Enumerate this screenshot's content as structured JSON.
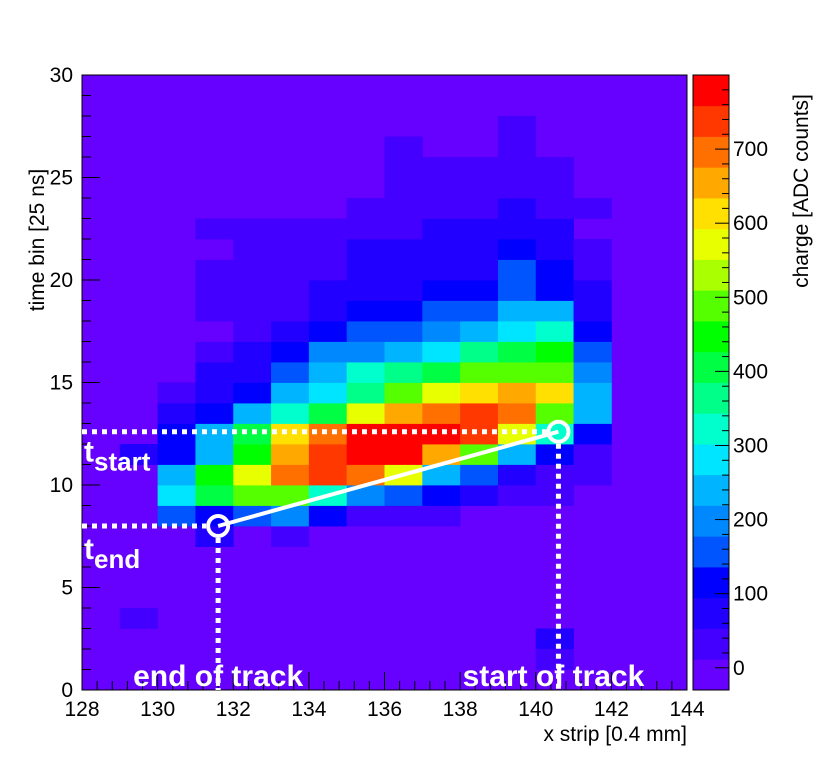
{
  "chart_data": {
    "type": "heatmap",
    "xlabel": "x strip [0.4 mm]",
    "ylabel": "time bin [25 ns]",
    "colorbar_label": "charge [ADC counts]",
    "x_range": [
      128,
      144
    ],
    "y_range": [
      0,
      30
    ],
    "x_ticks": [
      128,
      130,
      132,
      134,
      136,
      138,
      140,
      142,
      144
    ],
    "y_ticks": [
      0,
      5,
      10,
      15,
      20,
      25,
      30
    ],
    "colorbar_range": [
      -30,
      800
    ],
    "colorbar_ticks": [
      0,
      100,
      200,
      300,
      400,
      500,
      600,
      700
    ],
    "palette": [
      "#6600ff",
      "#4400ff",
      "#2200ff",
      "#0000ff",
      "#0055ff",
      "#0088ff",
      "#00b4ff",
      "#00e5ff",
      "#00ffcc",
      "#00ff88",
      "#00ff44",
      "#00ff00",
      "#55ff00",
      "#aaff00",
      "#e8ff00",
      "#ffe000",
      "#ffa800",
      "#ff7000",
      "#ff3800",
      "#ff0000"
    ],
    "background_color": "#6600ff",
    "cell_width": 1,
    "cell_height": 1,
    "cells": [
      {
        "x": 140,
        "y": 2,
        "v": 60
      },
      {
        "x": 140,
        "y": 1,
        "v": 30
      },
      {
        "x": 131,
        "y": 7,
        "v": 60
      },
      {
        "x": 133,
        "y": 7,
        "v": 40
      },
      {
        "x": 129,
        "y": 3,
        "v": 40
      },
      {
        "x": 128,
        "y": 22,
        "v": 5
      },
      {
        "x": 130,
        "y": 8,
        "v": 140
      },
      {
        "x": 131,
        "y": 8,
        "v": 120
      },
      {
        "x": 132,
        "y": 8,
        "v": 150
      },
      {
        "x": 133,
        "y": 8,
        "v": 190
      },
      {
        "x": 134,
        "y": 8,
        "v": 120
      },
      {
        "x": 135,
        "y": 8,
        "v": 50
      },
      {
        "x": 136,
        "y": 8,
        "v": 40
      },
      {
        "x": 137,
        "y": 8,
        "v": 30
      },
      {
        "x": 130,
        "y": 9,
        "v": 280
      },
      {
        "x": 131,
        "y": 9,
        "v": 400
      },
      {
        "x": 132,
        "y": 9,
        "v": 470
      },
      {
        "x": 133,
        "y": 9,
        "v": 500
      },
      {
        "x": 134,
        "y": 9,
        "v": 330
      },
      {
        "x": 135,
        "y": 9,
        "v": 200
      },
      {
        "x": 136,
        "y": 9,
        "v": 150
      },
      {
        "x": 137,
        "y": 9,
        "v": 120
      },
      {
        "x": 138,
        "y": 9,
        "v": 60
      },
      {
        "x": 139,
        "y": 9,
        "v": 40
      },
      {
        "x": 140,
        "y": 9,
        "v": 30
      },
      {
        "x": 130,
        "y": 10,
        "v": 230
      },
      {
        "x": 131,
        "y": 10,
        "v": 440
      },
      {
        "x": 132,
        "y": 10,
        "v": 560
      },
      {
        "x": 133,
        "y": 10,
        "v": 680
      },
      {
        "x": 134,
        "y": 10,
        "v": 720
      },
      {
        "x": 135,
        "y": 10,
        "v": 680
      },
      {
        "x": 136,
        "y": 10,
        "v": 560
      },
      {
        "x": 137,
        "y": 10,
        "v": 260
      },
      {
        "x": 138,
        "y": 10,
        "v": 160
      },
      {
        "x": 139,
        "y": 10,
        "v": 90
      },
      {
        "x": 140,
        "y": 10,
        "v": 50
      },
      {
        "x": 141,
        "y": 10,
        "v": 30
      },
      {
        "x": 129,
        "y": 11,
        "v": 60
      },
      {
        "x": 130,
        "y": 11,
        "v": 130
      },
      {
        "x": 131,
        "y": 11,
        "v": 230
      },
      {
        "x": 132,
        "y": 11,
        "v": 450
      },
      {
        "x": 133,
        "y": 11,
        "v": 640
      },
      {
        "x": 134,
        "y": 11,
        "v": 740
      },
      {
        "x": 135,
        "y": 11,
        "v": 780
      },
      {
        "x": 136,
        "y": 11,
        "v": 760
      },
      {
        "x": 137,
        "y": 11,
        "v": 660
      },
      {
        "x": 138,
        "y": 11,
        "v": 470
      },
      {
        "x": 139,
        "y": 11,
        "v": 230
      },
      {
        "x": 140,
        "y": 11,
        "v": 110
      },
      {
        "x": 141,
        "y": 11,
        "v": 50
      },
      {
        "x": 130,
        "y": 12,
        "v": 110
      },
      {
        "x": 131,
        "y": 12,
        "v": 220
      },
      {
        "x": 132,
        "y": 12,
        "v": 420
      },
      {
        "x": 133,
        "y": 12,
        "v": 600
      },
      {
        "x": 134,
        "y": 12,
        "v": 700
      },
      {
        "x": 135,
        "y": 12,
        "v": 780
      },
      {
        "x": 136,
        "y": 12,
        "v": 790
      },
      {
        "x": 137,
        "y": 12,
        "v": 780
      },
      {
        "x": 138,
        "y": 12,
        "v": 720
      },
      {
        "x": 139,
        "y": 12,
        "v": 560
      },
      {
        "x": 140,
        "y": 12,
        "v": 330
      },
      {
        "x": 141,
        "y": 12,
        "v": 120
      },
      {
        "x": 130,
        "y": 13,
        "v": 90
      },
      {
        "x": 131,
        "y": 13,
        "v": 120
      },
      {
        "x": 132,
        "y": 13,
        "v": 230
      },
      {
        "x": 133,
        "y": 13,
        "v": 320
      },
      {
        "x": 134,
        "y": 13,
        "v": 400
      },
      {
        "x": 135,
        "y": 13,
        "v": 560
      },
      {
        "x": 136,
        "y": 13,
        "v": 640
      },
      {
        "x": 137,
        "y": 13,
        "v": 680
      },
      {
        "x": 138,
        "y": 13,
        "v": 740
      },
      {
        "x": 139,
        "y": 13,
        "v": 700
      },
      {
        "x": 140,
        "y": 13,
        "v": 470
      },
      {
        "x": 141,
        "y": 13,
        "v": 230
      },
      {
        "x": 130,
        "y": 14,
        "v": 30
      },
      {
        "x": 131,
        "y": 14,
        "v": 70
      },
      {
        "x": 132,
        "y": 14,
        "v": 110
      },
      {
        "x": 133,
        "y": 14,
        "v": 220
      },
      {
        "x": 134,
        "y": 14,
        "v": 300
      },
      {
        "x": 135,
        "y": 14,
        "v": 380
      },
      {
        "x": 136,
        "y": 14,
        "v": 500
      },
      {
        "x": 137,
        "y": 14,
        "v": 560
      },
      {
        "x": 138,
        "y": 14,
        "v": 620
      },
      {
        "x": 139,
        "y": 14,
        "v": 640
      },
      {
        "x": 140,
        "y": 14,
        "v": 600
      },
      {
        "x": 141,
        "y": 14,
        "v": 260
      },
      {
        "x": 131,
        "y": 15,
        "v": 60
      },
      {
        "x": 132,
        "y": 15,
        "v": 80
      },
      {
        "x": 133,
        "y": 15,
        "v": 160
      },
      {
        "x": 134,
        "y": 15,
        "v": 240
      },
      {
        "x": 135,
        "y": 15,
        "v": 330
      },
      {
        "x": 136,
        "y": 15,
        "v": 380
      },
      {
        "x": 137,
        "y": 15,
        "v": 420
      },
      {
        "x": 138,
        "y": 15,
        "v": 470
      },
      {
        "x": 139,
        "y": 15,
        "v": 500
      },
      {
        "x": 140,
        "y": 15,
        "v": 470
      },
      {
        "x": 141,
        "y": 15,
        "v": 200
      },
      {
        "x": 131,
        "y": 16,
        "v": 30
      },
      {
        "x": 132,
        "y": 16,
        "v": 60
      },
      {
        "x": 133,
        "y": 16,
        "v": 110
      },
      {
        "x": 134,
        "y": 16,
        "v": 180
      },
      {
        "x": 135,
        "y": 16,
        "v": 200
      },
      {
        "x": 136,
        "y": 16,
        "v": 260
      },
      {
        "x": 137,
        "y": 16,
        "v": 300
      },
      {
        "x": 138,
        "y": 16,
        "v": 360
      },
      {
        "x": 139,
        "y": 16,
        "v": 420
      },
      {
        "x": 140,
        "y": 16,
        "v": 450
      },
      {
        "x": 141,
        "y": 16,
        "v": 140
      },
      {
        "x": 131,
        "y": 17,
        "v": 10
      },
      {
        "x": 132,
        "y": 17,
        "v": 50
      },
      {
        "x": 133,
        "y": 17,
        "v": 80
      },
      {
        "x": 134,
        "y": 17,
        "v": 110
      },
      {
        "x": 135,
        "y": 17,
        "v": 140
      },
      {
        "x": 136,
        "y": 17,
        "v": 170
      },
      {
        "x": 137,
        "y": 17,
        "v": 190
      },
      {
        "x": 138,
        "y": 17,
        "v": 230
      },
      {
        "x": 139,
        "y": 17,
        "v": 300
      },
      {
        "x": 140,
        "y": 17,
        "v": 320
      },
      {
        "x": 141,
        "y": 17,
        "v": 100
      },
      {
        "x": 131,
        "y": 18,
        "v": 20
      },
      {
        "x": 132,
        "y": 18,
        "v": 40
      },
      {
        "x": 133,
        "y": 18,
        "v": 50
      },
      {
        "x": 134,
        "y": 18,
        "v": 80
      },
      {
        "x": 135,
        "y": 18,
        "v": 110
      },
      {
        "x": 136,
        "y": 18,
        "v": 120
      },
      {
        "x": 137,
        "y": 18,
        "v": 140
      },
      {
        "x": 138,
        "y": 18,
        "v": 160
      },
      {
        "x": 139,
        "y": 18,
        "v": 230
      },
      {
        "x": 140,
        "y": 18,
        "v": 250
      },
      {
        "x": 141,
        "y": 18,
        "v": 70
      },
      {
        "x": 131,
        "y": 19,
        "v": 30
      },
      {
        "x": 132,
        "y": 19,
        "v": 40
      },
      {
        "x": 133,
        "y": 19,
        "v": 40
      },
      {
        "x": 134,
        "y": 19,
        "v": 60
      },
      {
        "x": 135,
        "y": 19,
        "v": 60
      },
      {
        "x": 136,
        "y": 19,
        "v": 70
      },
      {
        "x": 137,
        "y": 19,
        "v": 100
      },
      {
        "x": 138,
        "y": 19,
        "v": 120
      },
      {
        "x": 139,
        "y": 19,
        "v": 150
      },
      {
        "x": 140,
        "y": 19,
        "v": 130
      },
      {
        "x": 141,
        "y": 19,
        "v": 60
      },
      {
        "x": 131,
        "y": 20,
        "v": 20
      },
      {
        "x": 132,
        "y": 20,
        "v": 30
      },
      {
        "x": 133,
        "y": 20,
        "v": 40
      },
      {
        "x": 134,
        "y": 20,
        "v": 50
      },
      {
        "x": 135,
        "y": 20,
        "v": 60
      },
      {
        "x": 136,
        "y": 20,
        "v": 60
      },
      {
        "x": 137,
        "y": 20,
        "v": 70
      },
      {
        "x": 138,
        "y": 20,
        "v": 90
      },
      {
        "x": 139,
        "y": 20,
        "v": 170
      },
      {
        "x": 140,
        "y": 20,
        "v": 100
      },
      {
        "x": 141,
        "y": 20,
        "v": 50
      },
      {
        "x": 131,
        "y": 21,
        "v": 10
      },
      {
        "x": 132,
        "y": 21,
        "v": 30
      },
      {
        "x": 133,
        "y": 21,
        "v": 40
      },
      {
        "x": 134,
        "y": 21,
        "v": 50
      },
      {
        "x": 135,
        "y": 21,
        "v": 60
      },
      {
        "x": 136,
        "y": 21,
        "v": 60
      },
      {
        "x": 137,
        "y": 21,
        "v": 70
      },
      {
        "x": 138,
        "y": 21,
        "v": 80
      },
      {
        "x": 139,
        "y": 21,
        "v": 100
      },
      {
        "x": 140,
        "y": 21,
        "v": 70
      },
      {
        "x": 141,
        "y": 21,
        "v": 40
      },
      {
        "x": 131,
        "y": 22,
        "v": 20
      },
      {
        "x": 132,
        "y": 22,
        "v": 20
      },
      {
        "x": 133,
        "y": 22,
        "v": 30
      },
      {
        "x": 134,
        "y": 22,
        "v": 40
      },
      {
        "x": 135,
        "y": 22,
        "v": 50
      },
      {
        "x": 136,
        "y": 22,
        "v": 50
      },
      {
        "x": 137,
        "y": 22,
        "v": 60
      },
      {
        "x": 138,
        "y": 22,
        "v": 60
      },
      {
        "x": 139,
        "y": 22,
        "v": 80
      },
      {
        "x": 140,
        "y": 22,
        "v": 70
      },
      {
        "x": 135,
        "y": 23,
        "v": 30
      },
      {
        "x": 136,
        "y": 23,
        "v": 30
      },
      {
        "x": 137,
        "y": 23,
        "v": 30
      },
      {
        "x": 138,
        "y": 23,
        "v": 40
      },
      {
        "x": 139,
        "y": 23,
        "v": 70
      },
      {
        "x": 140,
        "y": 23,
        "v": 50
      },
      {
        "x": 141,
        "y": 23,
        "v": 40
      },
      {
        "x": 136,
        "y": 24,
        "v": 30
      },
      {
        "x": 137,
        "y": 24,
        "v": 40
      },
      {
        "x": 138,
        "y": 24,
        "v": 30
      },
      {
        "x": 139,
        "y": 24,
        "v": 30
      },
      {
        "x": 140,
        "y": 24,
        "v": 40
      },
      {
        "x": 136,
        "y": 25,
        "v": 30
      },
      {
        "x": 137,
        "y": 25,
        "v": 30
      },
      {
        "x": 138,
        "y": 25,
        "v": 30
      },
      {
        "x": 139,
        "y": 25,
        "v": 40
      },
      {
        "x": 140,
        "y": 25,
        "v": 30
      },
      {
        "x": 136,
        "y": 26,
        "v": 20
      },
      {
        "x": 139,
        "y": 26,
        "v": 30
      },
      {
        "x": 139,
        "y": 27,
        "v": 20
      }
    ],
    "annotations": {
      "track_start": {
        "x": 140.6,
        "y": 12.6
      },
      "track_end": {
        "x": 131.6,
        "y": 8.0
      },
      "t_start_label_base": "t",
      "t_start_label_sub": "start",
      "t_end_label_base": "t",
      "t_end_label_sub": "end",
      "end_of_track_label": "end of track",
      "start_of_track_label": "start of track"
    }
  }
}
